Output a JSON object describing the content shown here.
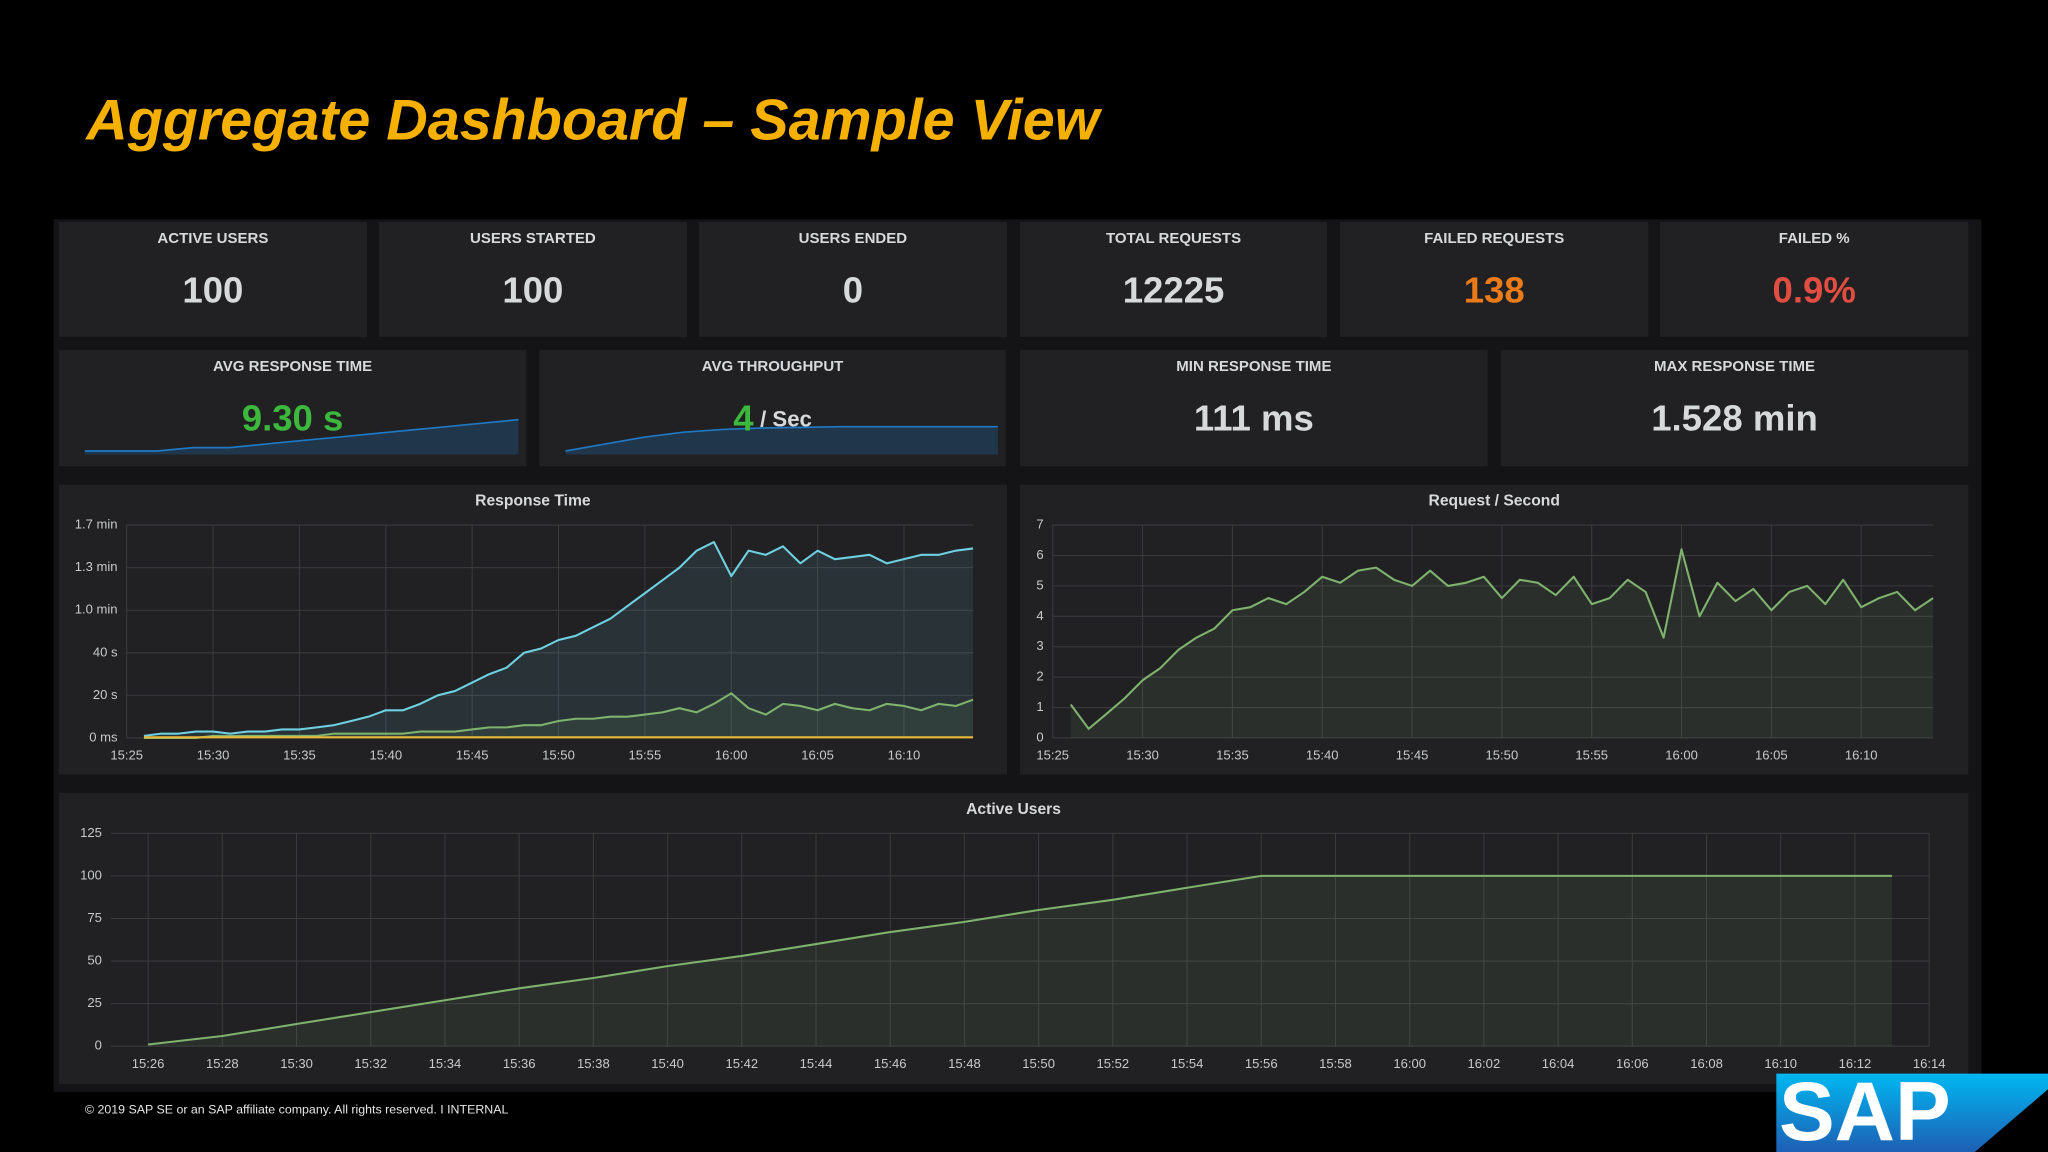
{
  "title": "Aggregate Dashboard – Sample View",
  "stats": [
    {
      "label": "ACTIVE USERS",
      "value": "100",
      "color": "#d8d9da"
    },
    {
      "label": "USERS STARTED",
      "value": "100",
      "color": "#d8d9da"
    },
    {
      "label": "USERS ENDED",
      "value": "0",
      "color": "#d8d9da"
    },
    {
      "label": "TOTAL REQUESTS",
      "value": "12225",
      "color": "#d8d9da"
    },
    {
      "label": "FAILED REQUESTS",
      "value": "138",
      "color": "#eb7b18"
    },
    {
      "label": "FAILED %",
      "value": "0.9%",
      "color": "#e24d42"
    },
    {
      "label": "AVG RESPONSE TIME",
      "value": "9.30 s",
      "color": "#3cb93c",
      "spark": {
        "values": [
          1,
          1,
          1,
          2,
          2,
          3,
          4,
          5,
          6,
          7,
          8,
          9,
          10
        ],
        "ylim": [
          0,
          12
        ],
        "color": "#1f78c1"
      }
    },
    {
      "label": "AVG THROUGHPUT",
      "value": "4",
      "unit": "/ Sec",
      "color": "#3cb93c",
      "spark": {
        "values": [
          0.5,
          1.5,
          2.5,
          3.2,
          3.6,
          3.8,
          3.9,
          4,
          4,
          4,
          4,
          4
        ],
        "ylim": [
          0,
          6
        ],
        "color": "#1f78c1"
      }
    },
    {
      "label": "MIN RESPONSE TIME",
      "value": "111 ms",
      "color": "#d8d9da"
    },
    {
      "label": "MAX RESPONSE TIME",
      "value": "1.528 min",
      "color": "#d8d9da"
    }
  ],
  "chart_data": [
    {
      "type": "line",
      "title": "Response Time",
      "x": [
        "15:26",
        "15:27",
        "15:28",
        "15:29",
        "15:30",
        "15:31",
        "15:32",
        "15:33",
        "15:34",
        "15:35",
        "15:36",
        "15:37",
        "15:38",
        "15:39",
        "15:40",
        "15:41",
        "15:42",
        "15:43",
        "15:44",
        "15:45",
        "15:46",
        "15:47",
        "15:48",
        "15:49",
        "15:50",
        "15:51",
        "15:52",
        "15:53",
        "15:54",
        "15:55",
        "15:56",
        "15:57",
        "15:58",
        "15:59",
        "16:00",
        "16:01",
        "16:02",
        "16:03",
        "16:04",
        "16:05",
        "16:06",
        "16:07",
        "16:08",
        "16:09",
        "16:10",
        "16:11",
        "16:12",
        "16:13",
        "16:14"
      ],
      "xlim": [
        "15:25",
        "16:14"
      ],
      "xticks": [
        "15:25",
        "15:30",
        "15:35",
        "15:40",
        "15:45",
        "15:50",
        "15:55",
        "16:00",
        "16:05",
        "16:10"
      ],
      "ylim": [
        0,
        100
      ],
      "yticks": [
        {
          "value": 0,
          "label": "0 ms"
        },
        {
          "value": 20,
          "label": "20 s"
        },
        {
          "value": 40,
          "label": "40 s"
        },
        {
          "value": 60,
          "label": "1.0 min"
        },
        {
          "value": 80,
          "label": "1.3 min"
        },
        {
          "value": 100,
          "label": "1.7 min"
        }
      ],
      "grid": true,
      "series": [
        {
          "color": "#6ed0e0",
          "values": [
            1,
            2,
            2,
            3,
            3,
            2,
            3,
            3,
            4,
            4,
            5,
            6,
            8,
            10,
            13,
            13,
            16,
            20,
            22,
            26,
            30,
            33,
            40,
            42,
            46,
            48,
            52,
            56,
            62,
            68,
            74,
            80,
            88,
            92,
            76,
            88,
            86,
            90,
            82,
            88,
            84,
            85,
            86,
            82,
            84,
            86,
            86,
            88,
            89
          ]
        },
        {
          "color": "#7eb26d",
          "values": [
            0,
            0,
            0,
            0,
            1,
            1,
            1,
            1,
            1,
            1,
            1,
            2,
            2,
            2,
            2,
            2,
            3,
            3,
            3,
            4,
            5,
            5,
            6,
            6,
            8,
            9,
            9,
            10,
            10,
            11,
            12,
            14,
            12,
            16,
            21,
            14,
            11,
            16,
            15,
            13,
            16,
            14,
            13,
            16,
            15,
            13,
            16,
            15,
            18
          ]
        },
        {
          "color": "#eab839",
          "values": [
            0.3,
            0.3,
            0.3,
            0.3,
            0.3,
            0.3,
            0.3,
            0.3,
            0.3,
            0.3,
            0.3,
            0.3,
            0.3,
            0.3,
            0.3,
            0.3,
            0.3,
            0.3,
            0.3,
            0.3,
            0.3,
            0.3,
            0.3,
            0.3,
            0.3,
            0.3,
            0.3,
            0.3,
            0.3,
            0.3,
            0.3,
            0.3,
            0.3,
            0.3,
            0.3,
            0.3,
            0.3,
            0.3,
            0.3,
            0.3,
            0.3,
            0.3,
            0.3,
            0.3,
            0.3,
            0.3,
            0.3,
            0.3,
            0.3
          ]
        }
      ]
    },
    {
      "type": "line",
      "title": "Request / Second",
      "x": [
        "15:26",
        "15:27",
        "15:28",
        "15:29",
        "15:30",
        "15:31",
        "15:32",
        "15:33",
        "15:34",
        "15:35",
        "15:36",
        "15:37",
        "15:38",
        "15:39",
        "15:40",
        "15:41",
        "15:42",
        "15:43",
        "15:44",
        "15:45",
        "15:46",
        "15:47",
        "15:48",
        "15:49",
        "15:50",
        "15:51",
        "15:52",
        "15:53",
        "15:54",
        "15:55",
        "15:56",
        "15:57",
        "15:58",
        "15:59",
        "16:00",
        "16:01",
        "16:02",
        "16:03",
        "16:04",
        "16:05",
        "16:06",
        "16:07",
        "16:08",
        "16:09",
        "16:10",
        "16:11",
        "16:12",
        "16:13",
        "16:14"
      ],
      "xlim": [
        "15:25",
        "16:14"
      ],
      "xticks": [
        "15:25",
        "15:30",
        "15:35",
        "15:40",
        "15:45",
        "15:50",
        "15:55",
        "16:00",
        "16:05",
        "16:10"
      ],
      "ylim": [
        0,
        7
      ],
      "yticks": [
        0,
        1,
        2,
        3,
        4,
        5,
        6,
        7
      ],
      "grid": true,
      "series": [
        {
          "color": "#7eb26d",
          "values": [
            1.1,
            0.3,
            0.8,
            1.3,
            1.9,
            2.3,
            2.9,
            3.3,
            3.6,
            4.2,
            4.3,
            4.6,
            4.4,
            4.8,
            5.3,
            5.1,
            5.5,
            5.6,
            5.2,
            5.0,
            5.5,
            5.0,
            5.1,
            5.3,
            4.6,
            5.2,
            5.1,
            4.7,
            5.3,
            4.4,
            4.6,
            5.2,
            4.8,
            3.3,
            6.2,
            4.0,
            5.1,
            4.5,
            4.9,
            4.2,
            4.8,
            5.0,
            4.4,
            5.2,
            4.3,
            4.6,
            4.8,
            4.2,
            4.6
          ]
        }
      ]
    },
    {
      "type": "line",
      "title": "Active Users",
      "x": [
        "15:26",
        "15:28",
        "15:30",
        "15:32",
        "15:34",
        "15:36",
        "15:38",
        "15:40",
        "15:42",
        "15:44",
        "15:46",
        "15:48",
        "15:50",
        "15:52",
        "15:54",
        "15:56",
        "15:58",
        "16:00",
        "16:02",
        "16:04",
        "16:06",
        "16:08",
        "16:10",
        "16:12",
        "16:13"
      ],
      "xlim": [
        "15:25",
        "16:14"
      ],
      "xticks": [
        "15:26",
        "15:28",
        "15:30",
        "15:32",
        "15:34",
        "15:36",
        "15:38",
        "15:40",
        "15:42",
        "15:44",
        "15:46",
        "15:48",
        "15:50",
        "15:52",
        "15:54",
        "15:56",
        "15:58",
        "16:00",
        "16:02",
        "16:04",
        "16:06",
        "16:08",
        "16:10",
        "16:12",
        "16:14"
      ],
      "ylim": [
        0,
        125
      ],
      "yticks": [
        0,
        25,
        50,
        75,
        100,
        125
      ],
      "grid": true,
      "series": [
        {
          "color": "#7eb26d",
          "values": [
            1,
            6,
            13,
            20,
            27,
            34,
            40,
            47,
            53,
            60,
            67,
            73,
            80,
            86,
            93,
            100,
            100,
            100,
            100,
            100,
            100,
            100,
            100,
            100,
            100
          ]
        }
      ]
    }
  ],
  "footer": "© 2019 SAP SE or an SAP affiliate company. All rights reserved.  I  INTERNAL",
  "logo": "SAP"
}
